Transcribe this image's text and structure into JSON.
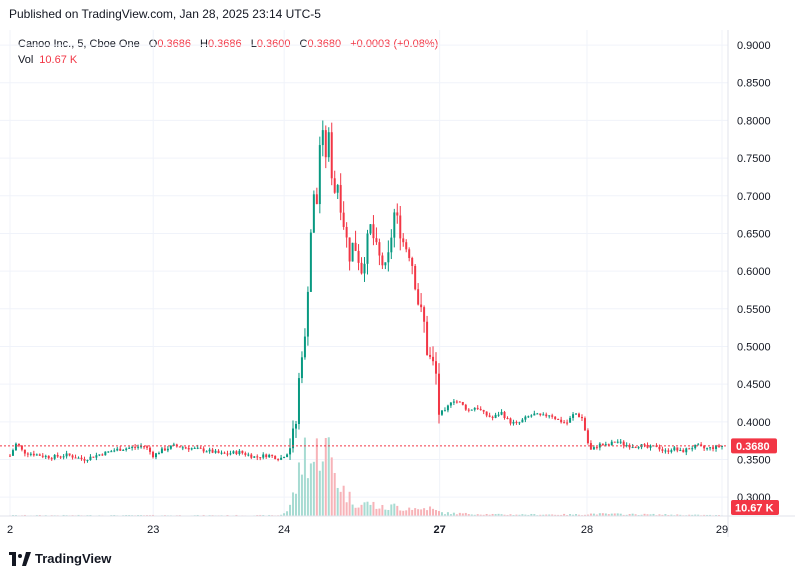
{
  "header": {
    "published": "Published on TradingView.com, Jan 28, 2025 23:14 UTC-5"
  },
  "legend": {
    "symbol": "Canoo Inc., 5, Cboe One",
    "o_label": "O",
    "o_value": "0.3686",
    "h_label": "H",
    "h_value": "0.3686",
    "l_label": "L",
    "l_value": "0.3600",
    "c_label": "C",
    "c_value": "0.3680",
    "change": "+0.0003 (+0.08%)",
    "vol_label": "Vol",
    "vol_value": "10.67 K"
  },
  "footer": {
    "brand": "TradingView"
  },
  "colors": {
    "up": "#089981",
    "down": "#f23645",
    "grid": "#f0f3fa",
    "price_line": "#f23645",
    "vol_up": "#a7dbd2",
    "vol_down": "#f7b3b8"
  },
  "chart_data": {
    "type": "candlestick",
    "title": "Canoo Inc., 5, Cboe One",
    "y_axis": {
      "ticks": [
        "0.9000",
        "0.8500",
        "0.8000",
        "0.7500",
        "0.7000",
        "0.6500",
        "0.6000",
        "0.5500",
        "0.5000",
        "0.4500",
        "0.4000",
        "0.3500",
        "0.3000"
      ],
      "range": [
        0.275,
        0.92
      ]
    },
    "x_axis": {
      "ticks": [
        "2",
        "23",
        "24",
        "27",
        "28",
        "29"
      ],
      "bold_ticks": [
        "27"
      ]
    },
    "last_price_label": "0.3680",
    "last_volume_label": "10.67 K",
    "price_path": [
      [
        0.0,
        0.355
      ],
      [
        0.8,
        0.372
      ],
      [
        1.6,
        0.36
      ],
      [
        3,
        0.357
      ],
      [
        5,
        0.353
      ],
      [
        7,
        0.356
      ],
      [
        9,
        0.35
      ],
      [
        11,
        0.357
      ],
      [
        13,
        0.363
      ],
      [
        15,
        0.366
      ],
      [
        16.5,
        0.368
      ],
      [
        17.5,
        0.355
      ],
      [
        18.5,
        0.362
      ],
      [
        20,
        0.368
      ],
      [
        22,
        0.365
      ],
      [
        24,
        0.362
      ],
      [
        26,
        0.357
      ],
      [
        28,
        0.36
      ],
      [
        30,
        0.353
      ],
      [
        31.5,
        0.356
      ],
      [
        33,
        0.351
      ],
      [
        34,
        0.36
      ],
      [
        35,
        0.4
      ],
      [
        35.5,
        0.49
      ],
      [
        36,
        0.5
      ],
      [
        36.5,
        0.6
      ],
      [
        37,
        0.7
      ],
      [
        37.5,
        0.69
      ],
      [
        38,
        0.8
      ],
      [
        38.5,
        0.75
      ],
      [
        39,
        0.78
      ],
      [
        39.5,
        0.7
      ],
      [
        40,
        0.72
      ],
      [
        40.5,
        0.68
      ],
      [
        41,
        0.65
      ],
      [
        41.5,
        0.62
      ],
      [
        42,
        0.64
      ],
      [
        43,
        0.6
      ],
      [
        44,
        0.66
      ],
      [
        45,
        0.62
      ],
      [
        46,
        0.6
      ],
      [
        47,
        0.68
      ],
      [
        48,
        0.64
      ],
      [
        49,
        0.62
      ],
      [
        50,
        0.55
      ],
      [
        50.5,
        0.54
      ],
      [
        51,
        0.49
      ],
      [
        52,
        0.47
      ],
      [
        52.5,
        0.4
      ],
      [
        53,
        0.41
      ],
      [
        54,
        0.43
      ],
      [
        55,
        0.425
      ],
      [
        56,
        0.415
      ],
      [
        57,
        0.42
      ],
      [
        58,
        0.41
      ],
      [
        59,
        0.405
      ],
      [
        60,
        0.413
      ],
      [
        61,
        0.4
      ],
      [
        62,
        0.397
      ],
      [
        63,
        0.405
      ],
      [
        64,
        0.41
      ],
      [
        65,
        0.407
      ],
      [
        66,
        0.41
      ],
      [
        67,
        0.402
      ],
      [
        68,
        0.398
      ],
      [
        69,
        0.412
      ],
      [
        70,
        0.404
      ],
      [
        70.5,
        0.375
      ],
      [
        71,
        0.362
      ],
      [
        72,
        0.37
      ],
      [
        73,
        0.368
      ],
      [
        74,
        0.375
      ],
      [
        75,
        0.37
      ],
      [
        76,
        0.368
      ],
      [
        77,
        0.369
      ],
      [
        78,
        0.365
      ],
      [
        79,
        0.368
      ],
      [
        80,
        0.36
      ],
      [
        81,
        0.365
      ],
      [
        82,
        0.36
      ],
      [
        83,
        0.365
      ],
      [
        84,
        0.368
      ],
      [
        85,
        0.364
      ],
      [
        86,
        0.366
      ],
      [
        87,
        0.368
      ]
    ],
    "volume_path": [
      [
        0,
        0.01
      ],
      [
        33,
        0.01
      ],
      [
        34,
        0.08
      ],
      [
        35,
        0.4
      ],
      [
        36,
        0.9
      ],
      [
        37,
        0.7
      ],
      [
        38,
        1.0
      ],
      [
        39,
        0.85
      ],
      [
        40,
        0.5
      ],
      [
        41,
        0.3
      ],
      [
        42,
        0.2
      ],
      [
        43,
        0.15
      ],
      [
        44,
        0.18
      ],
      [
        45,
        0.12
      ],
      [
        46,
        0.1
      ],
      [
        47,
        0.14
      ],
      [
        48,
        0.1
      ],
      [
        49,
        0.12
      ],
      [
        50,
        0.08
      ],
      [
        51,
        0.12
      ],
      [
        52,
        0.07
      ],
      [
        53,
        0.04
      ],
      [
        56,
        0.03
      ],
      [
        60,
        0.02
      ],
      [
        70,
        0.02
      ],
      [
        71,
        0.03
      ],
      [
        87,
        0.01
      ]
    ],
    "price_line_value": 0.368,
    "x_tick_positions": [
      0,
      17.5,
      33.5,
      52.5,
      70.5,
      87
    ]
  }
}
